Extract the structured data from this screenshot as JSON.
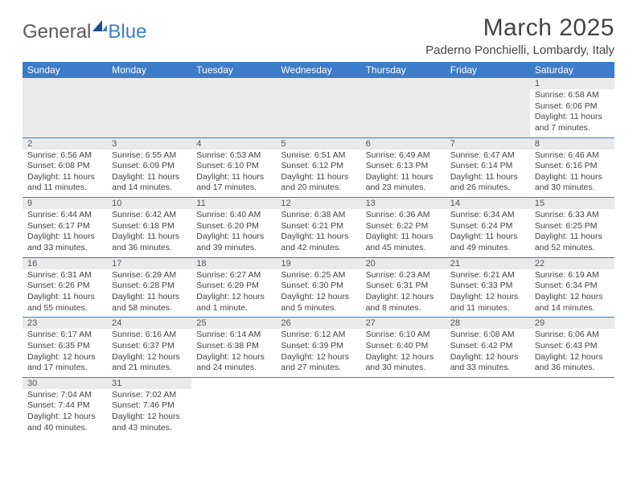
{
  "brand": {
    "general": "General",
    "blue": "Blue"
  },
  "title": "March 2025",
  "location": "Paderno Ponchielli, Lombardy, Italy",
  "colors": {
    "headerBg": "#3d7cc9",
    "daynumBg": "#eaeaea",
    "border": "#3d7cc9"
  },
  "dayNames": [
    "Sunday",
    "Monday",
    "Tuesday",
    "Wednesday",
    "Thursday",
    "Friday",
    "Saturday"
  ],
  "weeks": [
    [
      null,
      null,
      null,
      null,
      null,
      null,
      {
        "n": "1",
        "sr": "Sunrise: 6:58 AM",
        "ss": "Sunset: 6:06 PM",
        "dl": "Daylight: 11 hours and 7 minutes."
      }
    ],
    [
      {
        "n": "2",
        "sr": "Sunrise: 6:56 AM",
        "ss": "Sunset: 6:08 PM",
        "dl": "Daylight: 11 hours and 11 minutes."
      },
      {
        "n": "3",
        "sr": "Sunrise: 6:55 AM",
        "ss": "Sunset: 6:09 PM",
        "dl": "Daylight: 11 hours and 14 minutes."
      },
      {
        "n": "4",
        "sr": "Sunrise: 6:53 AM",
        "ss": "Sunset: 6:10 PM",
        "dl": "Daylight: 11 hours and 17 minutes."
      },
      {
        "n": "5",
        "sr": "Sunrise: 6:51 AM",
        "ss": "Sunset: 6:12 PM",
        "dl": "Daylight: 11 hours and 20 minutes."
      },
      {
        "n": "6",
        "sr": "Sunrise: 6:49 AM",
        "ss": "Sunset: 6:13 PM",
        "dl": "Daylight: 11 hours and 23 minutes."
      },
      {
        "n": "7",
        "sr": "Sunrise: 6:47 AM",
        "ss": "Sunset: 6:14 PM",
        "dl": "Daylight: 11 hours and 26 minutes."
      },
      {
        "n": "8",
        "sr": "Sunrise: 6:46 AM",
        "ss": "Sunset: 6:16 PM",
        "dl": "Daylight: 11 hours and 30 minutes."
      }
    ],
    [
      {
        "n": "9",
        "sr": "Sunrise: 6:44 AM",
        "ss": "Sunset: 6:17 PM",
        "dl": "Daylight: 11 hours and 33 minutes."
      },
      {
        "n": "10",
        "sr": "Sunrise: 6:42 AM",
        "ss": "Sunset: 6:18 PM",
        "dl": "Daylight: 11 hours and 36 minutes."
      },
      {
        "n": "11",
        "sr": "Sunrise: 6:40 AM",
        "ss": "Sunset: 6:20 PM",
        "dl": "Daylight: 11 hours and 39 minutes."
      },
      {
        "n": "12",
        "sr": "Sunrise: 6:38 AM",
        "ss": "Sunset: 6:21 PM",
        "dl": "Daylight: 11 hours and 42 minutes."
      },
      {
        "n": "13",
        "sr": "Sunrise: 6:36 AM",
        "ss": "Sunset: 6:22 PM",
        "dl": "Daylight: 11 hours and 45 minutes."
      },
      {
        "n": "14",
        "sr": "Sunrise: 6:34 AM",
        "ss": "Sunset: 6:24 PM",
        "dl": "Daylight: 11 hours and 49 minutes."
      },
      {
        "n": "15",
        "sr": "Sunrise: 6:33 AM",
        "ss": "Sunset: 6:25 PM",
        "dl": "Daylight: 11 hours and 52 minutes."
      }
    ],
    [
      {
        "n": "16",
        "sr": "Sunrise: 6:31 AM",
        "ss": "Sunset: 6:26 PM",
        "dl": "Daylight: 11 hours and 55 minutes."
      },
      {
        "n": "17",
        "sr": "Sunrise: 6:29 AM",
        "ss": "Sunset: 6:28 PM",
        "dl": "Daylight: 11 hours and 58 minutes."
      },
      {
        "n": "18",
        "sr": "Sunrise: 6:27 AM",
        "ss": "Sunset: 6:29 PM",
        "dl": "Daylight: 12 hours and 1 minute."
      },
      {
        "n": "19",
        "sr": "Sunrise: 6:25 AM",
        "ss": "Sunset: 6:30 PM",
        "dl": "Daylight: 12 hours and 5 minutes."
      },
      {
        "n": "20",
        "sr": "Sunrise: 6:23 AM",
        "ss": "Sunset: 6:31 PM",
        "dl": "Daylight: 12 hours and 8 minutes."
      },
      {
        "n": "21",
        "sr": "Sunrise: 6:21 AM",
        "ss": "Sunset: 6:33 PM",
        "dl": "Daylight: 12 hours and 11 minutes."
      },
      {
        "n": "22",
        "sr": "Sunrise: 6:19 AM",
        "ss": "Sunset: 6:34 PM",
        "dl": "Daylight: 12 hours and 14 minutes."
      }
    ],
    [
      {
        "n": "23",
        "sr": "Sunrise: 6:17 AM",
        "ss": "Sunset: 6:35 PM",
        "dl": "Daylight: 12 hours and 17 minutes."
      },
      {
        "n": "24",
        "sr": "Sunrise: 6:16 AM",
        "ss": "Sunset: 6:37 PM",
        "dl": "Daylight: 12 hours and 21 minutes."
      },
      {
        "n": "25",
        "sr": "Sunrise: 6:14 AM",
        "ss": "Sunset: 6:38 PM",
        "dl": "Daylight: 12 hours and 24 minutes."
      },
      {
        "n": "26",
        "sr": "Sunrise: 6:12 AM",
        "ss": "Sunset: 6:39 PM",
        "dl": "Daylight: 12 hours and 27 minutes."
      },
      {
        "n": "27",
        "sr": "Sunrise: 6:10 AM",
        "ss": "Sunset: 6:40 PM",
        "dl": "Daylight: 12 hours and 30 minutes."
      },
      {
        "n": "28",
        "sr": "Sunrise: 6:08 AM",
        "ss": "Sunset: 6:42 PM",
        "dl": "Daylight: 12 hours and 33 minutes."
      },
      {
        "n": "29",
        "sr": "Sunrise: 6:06 AM",
        "ss": "Sunset: 6:43 PM",
        "dl": "Daylight: 12 hours and 36 minutes."
      }
    ],
    [
      {
        "n": "30",
        "sr": "Sunrise: 7:04 AM",
        "ss": "Sunset: 7:44 PM",
        "dl": "Daylight: 12 hours and 40 minutes."
      },
      {
        "n": "31",
        "sr": "Sunrise: 7:02 AM",
        "ss": "Sunset: 7:46 PM",
        "dl": "Daylight: 12 hours and 43 minutes."
      },
      null,
      null,
      null,
      null,
      null
    ]
  ]
}
